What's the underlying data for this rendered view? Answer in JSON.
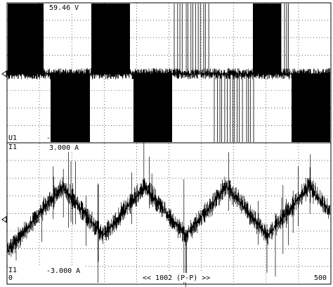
{
  "top_panel": {
    "scale_label": "59.46 V",
    "channel": "U1",
    "marker": "-"
  },
  "bottom_panel": {
    "channel_top": "I1",
    "scale_top": "3.000 A",
    "channel_bottom": "I1",
    "zero": "0",
    "scale_bottom": "-3.000 A",
    "nav": "<< 1002 (P-P) >>",
    "points": "500"
  }
}
